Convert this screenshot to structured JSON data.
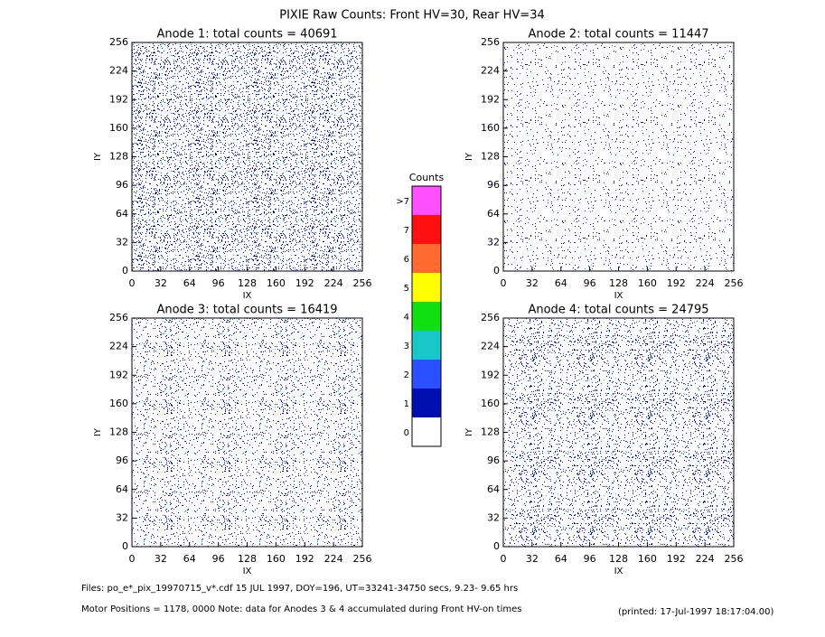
{
  "title": "PIXIE Raw Counts:  Front HV=30, Rear HV=34",
  "chart_data": [
    {
      "type": "heatmap",
      "title": "Anode 1: total counts = 40691",
      "xlabel": "IX",
      "ylabel": "IY",
      "xlim": [
        0,
        256
      ],
      "ylim": [
        0,
        256
      ],
      "xticks": [
        0,
        32,
        64,
        96,
        128,
        160,
        192,
        224,
        256
      ],
      "yticks": [
        0,
        32,
        64,
        96,
        128,
        160,
        192,
        224,
        256
      ]
    },
    {
      "type": "heatmap",
      "title": "Anode 2: total counts = 11447",
      "xlabel": "IX",
      "ylabel": "IY",
      "xlim": [
        0,
        256
      ],
      "ylim": [
        0,
        256
      ],
      "xticks": [
        0,
        32,
        64,
        96,
        128,
        160,
        192,
        224,
        256
      ],
      "yticks": [
        0,
        32,
        64,
        96,
        128,
        160,
        192,
        224,
        256
      ]
    },
    {
      "type": "heatmap",
      "title": "Anode 3: total counts = 16419",
      "xlabel": "IX",
      "ylabel": "IY",
      "xlim": [
        0,
        256
      ],
      "ylim": [
        0,
        256
      ],
      "xticks": [
        0,
        32,
        64,
        96,
        128,
        160,
        192,
        224,
        256
      ],
      "yticks": [
        0,
        32,
        64,
        96,
        128,
        160,
        192,
        224,
        256
      ]
    },
    {
      "type": "heatmap",
      "title": "Anode 4: total counts = 24795",
      "xlabel": "IX",
      "ylabel": "IY",
      "xlim": [
        0,
        256
      ],
      "ylim": [
        0,
        256
      ],
      "xticks": [
        0,
        32,
        64,
        96,
        128,
        160,
        192,
        224,
        256
      ],
      "yticks": [
        0,
        32,
        64,
        96,
        128,
        160,
        192,
        224,
        256
      ]
    }
  ],
  "colorbar": {
    "title": "Counts",
    "categories": [
      "0",
      "1",
      "2",
      "3",
      "4",
      "5",
      "6",
      "7",
      ">7"
    ],
    "colors": [
      "#ffffff",
      "#0010b0",
      "#2a50ff",
      "#18c8c8",
      "#10e010",
      "#ffff00",
      "#ff6a30",
      "#ff1010",
      "#ff50ff"
    ]
  },
  "footer": {
    "files": "Files: po_e*_pix_19970715_v*.cdf    15 JUL 1997, DOY=196, UT=33241-34750 secs,  9.23- 9.65 hrs",
    "note": "Motor Positions = 1178, 0000   Note: data for Anodes 3 & 4 accumulated during Front HV-on times",
    "printed": "(printed: 17-Jul-1997 18:17:04.00)"
  }
}
